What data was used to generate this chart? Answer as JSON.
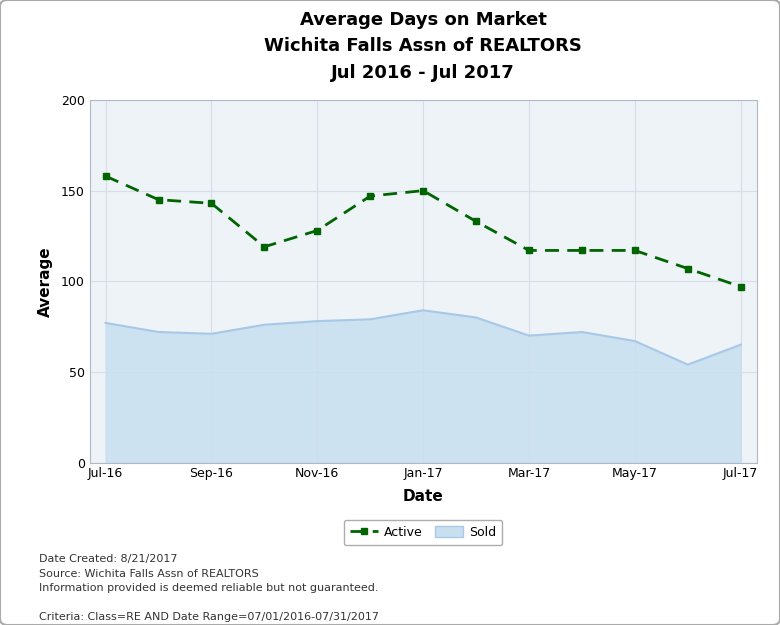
{
  "title": "Average Days on Market\nWichita Falls Assn of REALTORS\nJul 2016 - Jul 2017",
  "xlabel": "Date",
  "ylabel": "Average",
  "xlabels": [
    "Jul-16",
    "Sep-16",
    "Nov-16",
    "Jan-17",
    "Mar-17",
    "May-17",
    "Jul-17"
  ],
  "active_values": [
    158,
    145,
    143,
    119,
    128,
    147,
    150,
    133,
    117,
    117,
    117,
    107,
    97
  ],
  "sold_values": [
    77,
    72,
    71,
    76,
    78,
    79,
    84,
    80,
    70,
    72,
    67,
    54,
    65
  ],
  "x_indices": [
    0,
    1,
    2,
    3,
    4,
    5,
    6,
    7,
    8,
    9,
    10,
    11,
    12
  ],
  "xtick_positions": [
    0,
    2,
    4,
    6,
    8,
    10,
    12
  ],
  "ylim": [
    0,
    200
  ],
  "yticks": [
    0,
    50,
    100,
    150,
    200
  ],
  "active_color": "#006400",
  "sold_line_color": "#a8c8e8",
  "sold_fill_top_color": "#c8dff0",
  "sold_fill_bottom_color": "#e8f2fa",
  "background_color": "#ffffff",
  "plot_bg_color": "#eef3f8",
  "grid_color": "#d8dde8",
  "border_color": "#b0b8c8",
  "footer_text_lines": [
    "Date Created: 8/21/2017",
    "Source: Wichita Falls Assn of REALTORS",
    "Information provided is deemed reliable but not guaranteed.",
    "",
    "Criteria: Class=RE AND Date Range=07/01/2016-07/31/2017"
  ],
  "title_fontsize": 13,
  "axis_label_fontsize": 11,
  "tick_fontsize": 9,
  "legend_fontsize": 9,
  "footer_fontsize": 8
}
